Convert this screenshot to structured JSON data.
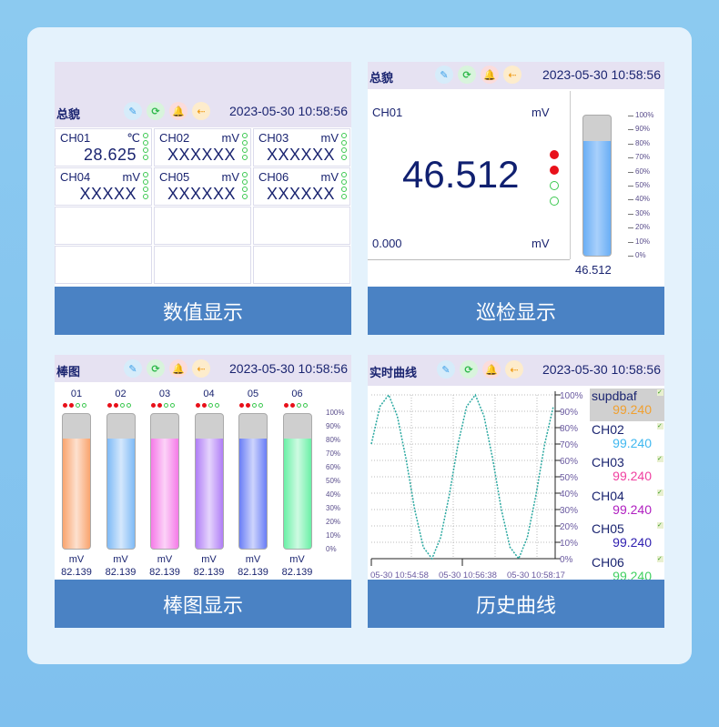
{
  "header": {
    "datetime": "2023-05-30 10:58:56",
    "icons": [
      "pen-icon",
      "refresh-icon",
      "alarm-bell-icon",
      "usb-icon"
    ]
  },
  "panels": {
    "numeric": {
      "title": "总貌",
      "label": "数值显示",
      "cells": [
        {
          "ch": "CH01",
          "unit": "℃",
          "value": "28.625",
          "leds": [
            "off",
            "off",
            "off",
            "off"
          ]
        },
        {
          "ch": "CH02",
          "unit": "mV",
          "value": "XXXXXX",
          "leds": [
            "off",
            "off",
            "off",
            "off"
          ]
        },
        {
          "ch": "CH03",
          "unit": "mV",
          "value": "XXXXXX",
          "leds": [
            "off",
            "off",
            "off",
            "off"
          ]
        },
        {
          "ch": "CH04",
          "unit": "mV",
          "value": "XXXXX",
          "leds": [
            "off",
            "off",
            "off",
            "off"
          ]
        },
        {
          "ch": "CH05",
          "unit": "mV",
          "value": "XXXXXX",
          "leds": [
            "off",
            "off",
            "off",
            "off"
          ]
        },
        {
          "ch": "CH06",
          "unit": "mV",
          "value": "XXXXXX",
          "leds": [
            "off",
            "off",
            "off",
            "off"
          ]
        }
      ]
    },
    "patrol": {
      "title": "总貌",
      "label": "巡检显示",
      "ch": "CH01",
      "unit": "mV",
      "value": "46.512",
      "min": "0.000",
      "min_unit": "mV",
      "bar_value": "46.512",
      "fill_percent": 82,
      "leds": [
        "on",
        "on",
        "off",
        "off"
      ],
      "scale": [
        "100%",
        "90%",
        "80%",
        "70%",
        "60%",
        "50%",
        "40%",
        "30%",
        "20%",
        "10%",
        "0%"
      ]
    },
    "bars": {
      "title": "棒图",
      "label": "棒图显示",
      "scale": [
        "100%",
        "90%",
        "80%",
        "70%",
        "60%",
        "50%",
        "40%",
        "30%",
        "20%",
        "10%",
        "0%"
      ],
      "channels": [
        {
          "name": "01",
          "unit": "mV",
          "value": "82.139",
          "fill_percent": 82,
          "color": "#f9a46e"
        },
        {
          "name": "02",
          "unit": "mV",
          "value": "82.139",
          "fill_percent": 82,
          "color": "#7fbaf6"
        },
        {
          "name": "03",
          "unit": "mV",
          "value": "82.139",
          "fill_percent": 82,
          "color": "#f57ae8"
        },
        {
          "name": "04",
          "unit": "mV",
          "value": "82.139",
          "fill_percent": 82,
          "color": "#b07ef6"
        },
        {
          "name": "05",
          "unit": "mV",
          "value": "82.139",
          "fill_percent": 82,
          "color": "#6a7ef6"
        },
        {
          "name": "06",
          "unit": "mV",
          "value": "82.139",
          "fill_percent": 82,
          "color": "#6af0a6"
        }
      ]
    },
    "curve": {
      "title": "实时曲线",
      "label": "历史曲线",
      "legend": [
        {
          "name": "supdbaf",
          "value": "99.240",
          "color": "#f0a030",
          "selected": true
        },
        {
          "name": "CH02",
          "value": "99.240",
          "color": "#40b8f0"
        },
        {
          "name": "CH03",
          "value": "99.240",
          "color": "#f040a0"
        },
        {
          "name": "CH04",
          "value": "99.240",
          "color": "#b020c0"
        },
        {
          "name": "CH05",
          "value": "99.240",
          "color": "#3020b0"
        },
        {
          "name": "CH06",
          "value": "99.240",
          "color": "#40d060"
        }
      ]
    }
  },
  "chart_data": {
    "type": "line",
    "ylim": [
      0,
      100
    ],
    "y_ticks": [
      "100%",
      "90%",
      "80%",
      "70%",
      "60%",
      "50%",
      "40%",
      "30%",
      "20%",
      "10%",
      "0%"
    ],
    "x_ticks": [
      "05-30 10:54:58",
      "05-30 10:56:38",
      "05-30 10:58:17"
    ],
    "grid": true,
    "series": [
      {
        "color": "#2aa8a0",
        "values": [
          70,
          93,
          100,
          87,
          61,
          30,
          7,
          0,
          13,
          39,
          70,
          93,
          100,
          87,
          61,
          30,
          7,
          0,
          13,
          39,
          70,
          93
        ]
      }
    ]
  }
}
